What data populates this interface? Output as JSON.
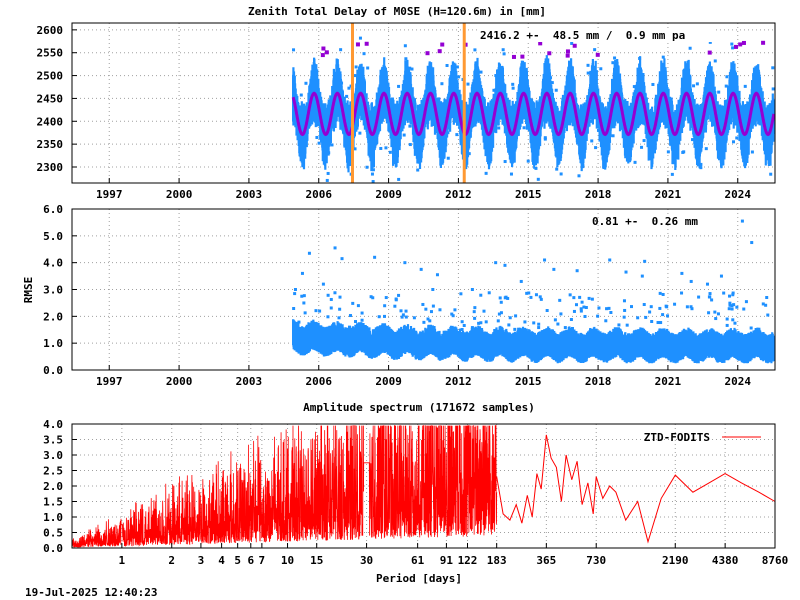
{
  "timestamp": "19-Jul-2025 12:40:23",
  "chart_data": [
    {
      "type": "scatter",
      "title": "Zenith Total Delay of M0SE (H=120.6m) in [mm]",
      "annotation": "2416.2 +-  48.5 mm /  0.9 mm pa",
      "xlim": [
        1995.4,
        2025.6
      ],
      "ylim": [
        2265,
        2615
      ],
      "x_ticks": [
        1997,
        2000,
        2003,
        2006,
        2009,
        2012,
        2015,
        2018,
        2021,
        2024
      ],
      "x_tick_labels": [
        "1997",
        "2000",
        "2003",
        "2006",
        "2009",
        "2012",
        "2015",
        "2018",
        "2021",
        "2024"
      ],
      "y_ticks": [
        2300,
        2350,
        2400,
        2450,
        2500,
        2550,
        2600
      ],
      "y_tick_labels": [
        "2300",
        "2350",
        "2400",
        "2450",
        "2500",
        "2550",
        "2600"
      ],
      "data_start": 2004.9,
      "data_end": 2025.55,
      "series": [
        {
          "role": "observations",
          "color": "#1e90ff",
          "mean": 2416.2,
          "seasonal_amplitude": 50,
          "spread": 48.5
        },
        {
          "role": "seasonal-fit",
          "color": "#9400d3",
          "mean": 2416.2,
          "seasonal_amplitude": 45
        }
      ],
      "vertical_markers": [
        {
          "x": 2007.45,
          "color": "#ff9933"
        },
        {
          "x": 2012.25,
          "color": "#ff9933"
        }
      ],
      "grid": true
    },
    {
      "type": "scatter",
      "ylabel": "RMSE",
      "annotation": "0.81 +-  0.26 mm",
      "xlim": [
        1995.4,
        2025.6
      ],
      "ylim": [
        0,
        6
      ],
      "x_ticks": [
        1997,
        2000,
        2003,
        2006,
        2009,
        2012,
        2015,
        2018,
        2021,
        2024
      ],
      "x_tick_labels": [
        "1997",
        "2000",
        "2003",
        "2006",
        "2009",
        "2012",
        "2015",
        "2018",
        "2021",
        "2024"
      ],
      "y_ticks": [
        0,
        1,
        2,
        3,
        4,
        5,
        6
      ],
      "y_tick_labels": [
        "0.0",
        "1.0",
        "2.0",
        "3.0",
        "4.0",
        "5.0",
        "6.0"
      ],
      "data_start": 2004.9,
      "data_end": 2025.55,
      "series": [
        {
          "color": "#1e90ff",
          "mean": 0.81,
          "spread": 0.26
        }
      ],
      "outliers": [
        [
          2024.2,
          5.55
        ],
        [
          2024.6,
          4.75
        ],
        [
          2005.6,
          4.35
        ],
        [
          2006.7,
          4.55
        ],
        [
          2007.0,
          4.15
        ],
        [
          2008.4,
          4.2
        ],
        [
          2009.7,
          4.0
        ],
        [
          2010.4,
          3.75
        ],
        [
          2011.1,
          3.55
        ],
        [
          2013.6,
          4.0
        ],
        [
          2014.0,
          3.9
        ],
        [
          2015.7,
          4.1
        ],
        [
          2016.1,
          3.75
        ],
        [
          2017.1,
          3.7
        ],
        [
          2018.5,
          4.1
        ],
        [
          2019.2,
          3.65
        ],
        [
          2020.0,
          4.05
        ],
        [
          2021.6,
          3.6
        ],
        [
          2022.0,
          3.3
        ],
        [
          2023.3,
          3.5
        ],
        [
          2005.3,
          3.6
        ],
        [
          2006.2,
          3.2
        ],
        [
          2010.9,
          3.0
        ],
        [
          2014.7,
          3.3
        ],
        [
          2019.9,
          3.5
        ],
        [
          2005.0,
          3.0
        ],
        [
          2012.6,
          3.0
        ],
        [
          2016.8,
          2.8
        ],
        [
          2022.7,
          3.2
        ],
        [
          2008.9,
          2.7
        ]
      ],
      "grid": true
    },
    {
      "type": "line",
      "title": "Amplitude spectrum (171672 samples)",
      "xlabel": "Period [days]",
      "legend": [
        "ZTD-FODITS"
      ],
      "legend_position": "top-right",
      "scale": "log",
      "xlim": [
        0.5,
        8760
      ],
      "ylim": [
        0,
        4
      ],
      "x_ticks": [
        1,
        2,
        3,
        4,
        5,
        6,
        7,
        10,
        15,
        30,
        61,
        91,
        122,
        183,
        365,
        730,
        2190,
        4380,
        8760
      ],
      "x_tick_labels": [
        "1",
        "2",
        "3",
        "4",
        "5",
        "6",
        "7",
        "10",
        "15",
        "30",
        "61",
        "91",
        "122",
        "183",
        "365",
        "730",
        "2190",
        "4380",
        "8760"
      ],
      "y_ticks": [
        0,
        0.5,
        1,
        1.5,
        2,
        2.5,
        3,
        3.5,
        4
      ],
      "y_tick_labels": [
        "0.0",
        "0.5",
        "1.0",
        "1.5",
        "2.0",
        "2.5",
        "3.0",
        "3.5",
        "4.0"
      ],
      "series": [
        {
          "name": "ZTD-FODITS",
          "color": "#ff0000",
          "x": [
            183,
            200,
            220,
            240,
            260,
            280,
            300,
            320,
            340,
            365,
            390,
            420,
            450,
            480,
            520,
            560,
            600,
            650,
            700,
            730,
            800,
            880,
            960,
            1100,
            1300,
            1500,
            1800,
            2190,
            2800,
            3500,
            4380,
            5500,
            7000,
            8760
          ],
          "values": [
            2.3,
            1.1,
            0.9,
            1.4,
            0.8,
            1.7,
            1.0,
            2.4,
            1.9,
            3.65,
            2.9,
            2.6,
            1.5,
            3.0,
            2.2,
            2.8,
            1.4,
            2.1,
            1.1,
            2.3,
            1.6,
            2.0,
            1.8,
            0.9,
            1.5,
            0.2,
            1.6,
            2.35,
            1.8,
            2.1,
            2.4,
            2.1,
            1.8,
            1.5
          ]
        }
      ],
      "grid": true
    }
  ]
}
